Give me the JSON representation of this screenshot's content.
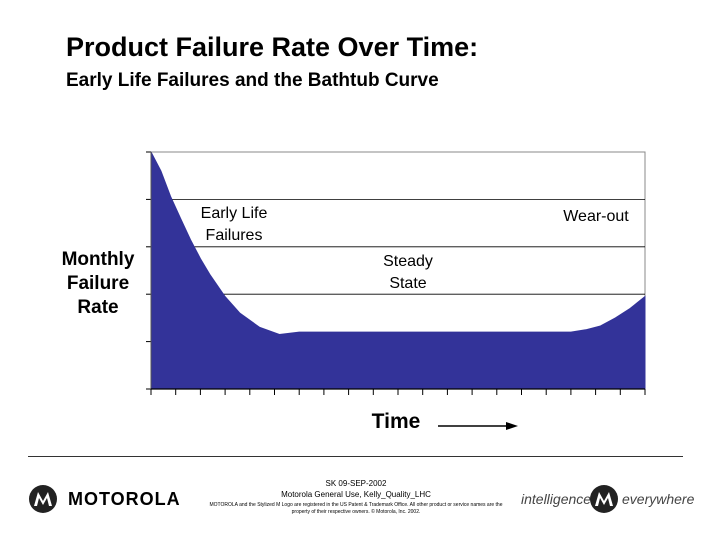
{
  "header": {
    "title": "Product Failure Rate Over Time:",
    "subtitle": "Early Life Failures and the Bathtub Curve"
  },
  "chart_data": {
    "type": "area",
    "title": "Product Failure Rate Over Time:",
    "subtitle": "Early Life Failures and the Bathtub Curve",
    "xlabel": "Time",
    "ylabel": "Monthly\nFailure\nRate",
    "x": [
      0,
      2,
      4,
      6,
      8,
      10,
      12,
      15,
      18,
      22,
      26,
      30,
      40,
      50,
      60,
      70,
      80,
      85,
      88,
      91,
      94,
      97,
      100
    ],
    "series": [
      {
        "values": [
          5.0,
          4.6,
          4.05,
          3.6,
          3.15,
          2.75,
          2.4,
          1.95,
          1.6,
          1.3,
          1.15,
          1.2,
          1.2,
          1.2,
          1.2,
          1.2,
          1.2,
          1.2,
          1.25,
          1.33,
          1.5,
          1.7,
          1.95
        ]
      }
    ],
    "xlim": [
      0,
      100
    ],
    "ylim": [
      0,
      5
    ],
    "x_tick_count": 20,
    "y_tick_count": 5,
    "grid": "horizontal",
    "fill_color": "#333399",
    "annotations": [
      {
        "text": "Early Life\nFailures"
      },
      {
        "text": "Steady\nState"
      },
      {
        "text": "Wear-out"
      }
    ]
  },
  "footer": {
    "line1": "SK 09-SEP-2002",
    "line2": "Motorola General Use, Kelly_Quality_LHC",
    "line3": "MOTOROLA and the Stylized M Logo are registered in the US Patent & Trademark Office. All other product or service names are the property of their respective owners. © Motorola, Inc. 2002."
  },
  "branding": {
    "left_wordmark": "MOTOROLA",
    "left_logo_icon": "motorola-m-logo-icon",
    "right_tag_1": "intelligence",
    "right_tag_2": "everywhere",
    "right_logo_icon": "motorola-m-logo-icon"
  }
}
